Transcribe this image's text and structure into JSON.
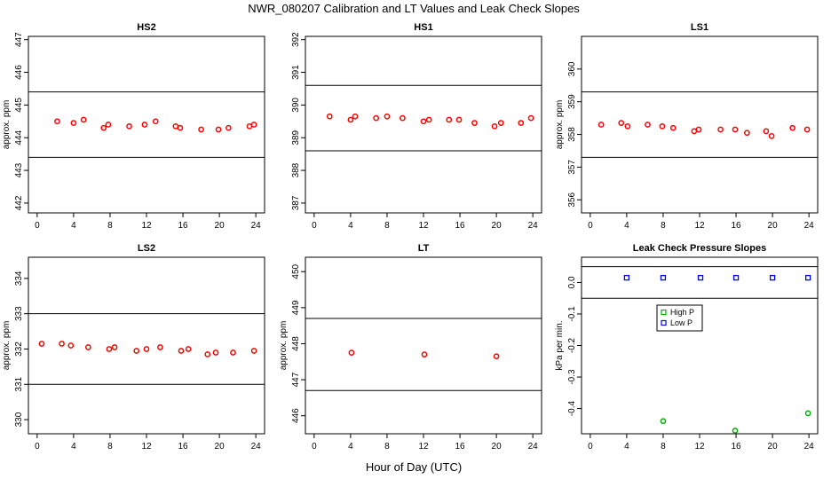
{
  "figure": {
    "title": "NWR_080207  Calibration and LT Values and Leak Check Slopes",
    "xlabel": "Hour of Day (UTC)"
  },
  "chart_data": [
    {
      "type": "scatter",
      "title": "HS2",
      "ylabel": "approx. ppm",
      "xlim": [
        0,
        24
      ],
      "ylim": [
        441.7,
        447.1
      ],
      "xticks": [
        0,
        4,
        8,
        12,
        16,
        20,
        24
      ],
      "yticks": [
        442,
        443,
        444,
        445,
        446,
        447
      ],
      "hlines": [
        445.4,
        443.4
      ],
      "series": [
        {
          "color": "#ff0000",
          "marker": "circle",
          "x": [
            2.2,
            4.0,
            5.1,
            7.3,
            7.8,
            10.1,
            11.8,
            13.0,
            15.2,
            15.7,
            18.0,
            19.9,
            21.0,
            23.3,
            23.8
          ],
          "y": [
            444.5,
            444.45,
            444.55,
            444.3,
            444.4,
            444.35,
            444.4,
            444.5,
            444.35,
            444.3,
            444.25,
            444.25,
            444.3,
            444.35,
            444.4
          ]
        }
      ]
    },
    {
      "type": "scatter",
      "title": "HS1",
      "ylabel": "",
      "xlim": [
        0,
        24
      ],
      "ylim": [
        386.7,
        392.1
      ],
      "xticks": [
        0,
        4,
        8,
        12,
        16,
        20,
        24
      ],
      "yticks": [
        387,
        388,
        389,
        390,
        391,
        392
      ],
      "hlines": [
        390.6,
        388.6
      ],
      "series": [
        {
          "color": "#ff0000",
          "marker": "circle",
          "x": [
            1.7,
            4.0,
            4.5,
            6.8,
            8.0,
            9.7,
            12.0,
            12.6,
            14.8,
            15.9,
            17.6,
            19.8,
            20.5,
            22.7,
            23.8
          ],
          "y": [
            389.65,
            389.55,
            389.65,
            389.6,
            389.65,
            389.6,
            389.5,
            389.55,
            389.55,
            389.55,
            389.45,
            389.35,
            389.45,
            389.45,
            389.6
          ]
        }
      ]
    },
    {
      "type": "scatter",
      "title": "LS1",
      "ylabel": "approx. ppm",
      "xlim": [
        0,
        24
      ],
      "ylim": [
        355.6,
        361.0
      ],
      "xticks": [
        0,
        4,
        8,
        12,
        16,
        20,
        24
      ],
      "yticks": [
        356,
        357,
        358,
        359,
        360
      ],
      "hlines": [
        359.3,
        357.3
      ],
      "series": [
        {
          "color": "#ff0000",
          "marker": "circle",
          "x": [
            1.2,
            3.4,
            4.1,
            6.3,
            7.9,
            9.1,
            11.4,
            11.9,
            14.3,
            15.9,
            17.2,
            19.3,
            19.9,
            22.2,
            23.8
          ],
          "y": [
            358.3,
            358.35,
            358.25,
            358.3,
            358.25,
            358.2,
            358.1,
            358.15,
            358.15,
            358.15,
            358.05,
            358.1,
            357.95,
            358.2,
            358.15
          ]
        }
      ]
    },
    {
      "type": "scatter",
      "title": "LS2",
      "ylabel": "approx. ppm",
      "xlim": [
        0,
        24
      ],
      "ylim": [
        329.6,
        334.6
      ],
      "xticks": [
        0,
        4,
        8,
        12,
        16,
        20,
        24
      ],
      "yticks": [
        330,
        331,
        332,
        333,
        334
      ],
      "hlines": [
        333.0,
        331.0
      ],
      "series": [
        {
          "color": "#ff0000",
          "marker": "circle",
          "x": [
            0.5,
            2.7,
            3.7,
            5.6,
            7.9,
            8.5,
            10.9,
            12.0,
            13.5,
            15.8,
            16.6,
            18.7,
            19.6,
            21.5,
            23.8
          ],
          "y": [
            332.15,
            332.15,
            332.1,
            332.05,
            332.0,
            332.05,
            331.95,
            332.0,
            332.05,
            331.95,
            332.0,
            331.85,
            331.9,
            331.9,
            331.95
          ]
        }
      ]
    },
    {
      "type": "scatter",
      "title": "LT",
      "ylabel": "approx. ppm",
      "xlim": [
        0,
        24
      ],
      "ylim": [
        445.5,
        450.4
      ],
      "xticks": [
        0,
        4,
        8,
        12,
        16,
        20,
        24
      ],
      "yticks": [
        446,
        447,
        448,
        449,
        450
      ],
      "hlines": [
        448.7,
        446.7
      ],
      "series": [
        {
          "color": "#ff0000",
          "marker": "circle",
          "x": [
            4.1,
            12.1,
            20.0
          ],
          "y": [
            447.75,
            447.7,
            447.65
          ]
        }
      ]
    },
    {
      "type": "scatter",
      "title": "Leak Check Pressure Slopes",
      "ylabel": "kPa per min.",
      "xlim": [
        0,
        24
      ],
      "ylim": [
        -0.48,
        0.08
      ],
      "xticks": [
        0,
        4,
        8,
        12,
        16,
        20,
        24
      ],
      "yticks": [
        0.0,
        -0.1,
        -0.2,
        -0.3,
        -0.4
      ],
      "ytick_labels": [
        "0.0",
        "-0.1",
        "-0.2",
        "-0.3",
        "-0.4"
      ],
      "hlines": [
        0.05,
        -0.05
      ],
      "legend": {
        "placement": "upper-middle",
        "entries": [
          "High P",
          "Low P"
        ]
      },
      "series": [
        {
          "name": "High P",
          "color": "#00b000",
          "marker": "circle",
          "x": [
            8.0,
            15.9,
            23.9
          ],
          "y": [
            -0.44,
            -0.47,
            -0.415
          ]
        },
        {
          "name": "Low P",
          "color": "#0000ff",
          "marker": "square",
          "x": [
            4.0,
            8.0,
            12.1,
            16.0,
            20.0,
            23.9
          ],
          "y": [
            0.015,
            0.015,
            0.015,
            0.015,
            0.015,
            0.015
          ]
        }
      ]
    }
  ]
}
